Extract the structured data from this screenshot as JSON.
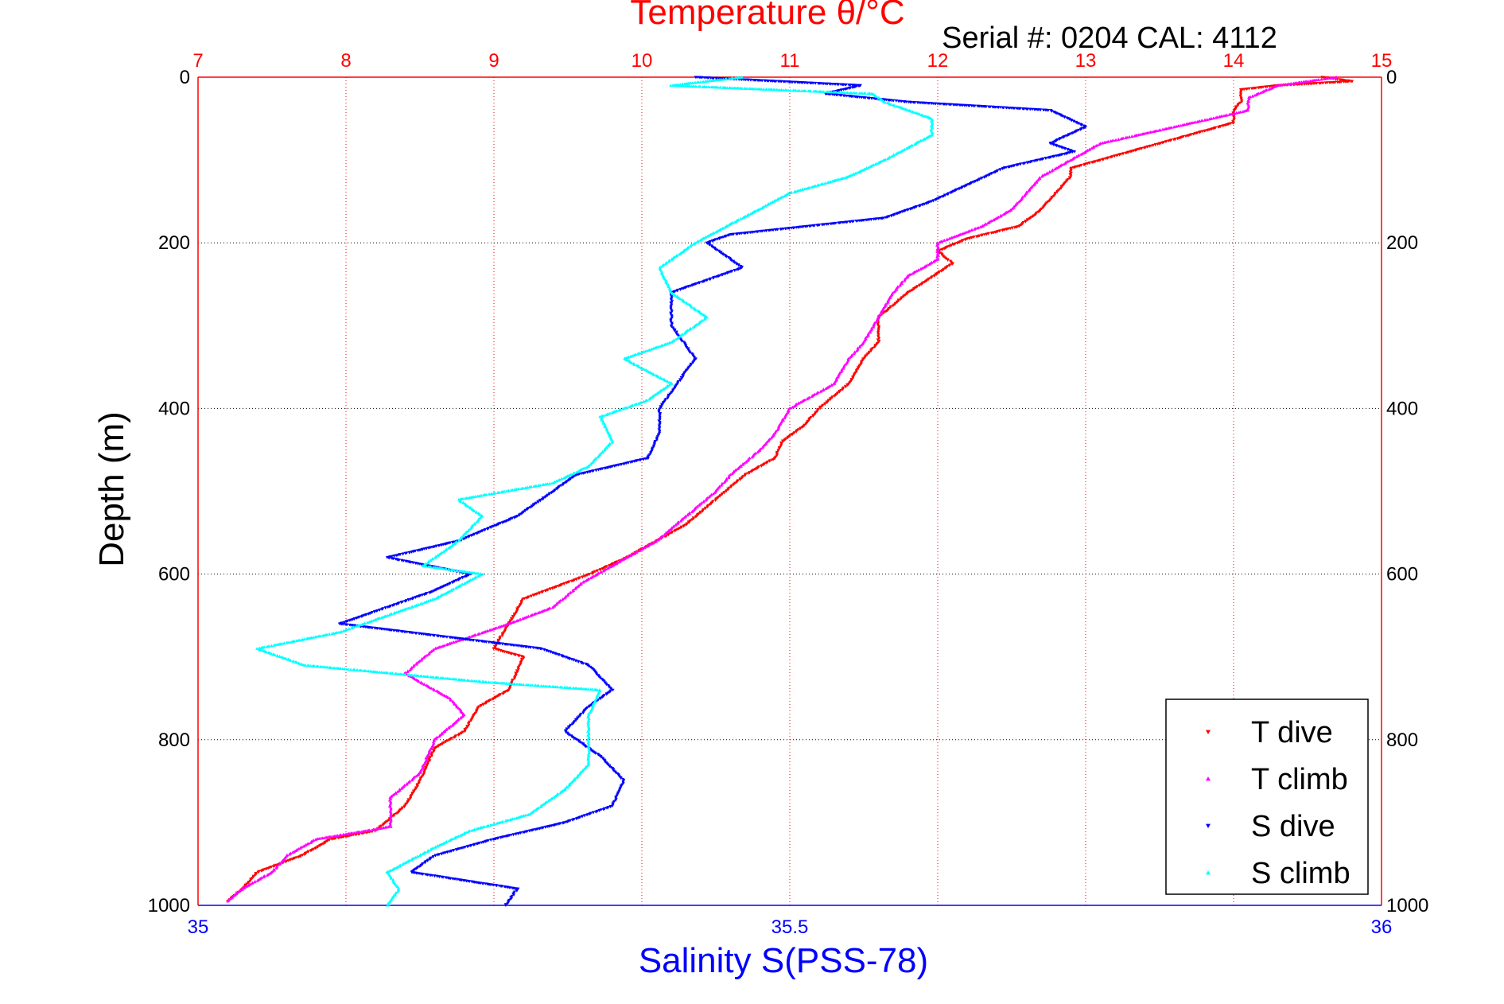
{
  "chart_data": {
    "type": "scatter",
    "title": "Temperature θ/°C",
    "subtitle": "Serial #: 0204  CAL: 4112",
    "ylabel": "Depth (m)",
    "xlabel_bottom": "Salinity S(PSS-78)",
    "y": {
      "range": [
        0,
        1000
      ],
      "reversed": true,
      "ticks": [
        0,
        200,
        400,
        600,
        800,
        1000
      ]
    },
    "x_top": {
      "label": "Temperature θ/°C",
      "range": [
        7,
        15
      ],
      "ticks": [
        7,
        8,
        9,
        10,
        11,
        12,
        13,
        14,
        15
      ],
      "grid": true,
      "color": "#ff0000"
    },
    "x_bottom": {
      "label": "Salinity S(PSS-78)",
      "range": [
        35,
        36
      ],
      "ticks": [
        35,
        35.5,
        36
      ],
      "color": "#0000ff"
    },
    "grid": true,
    "legend": {
      "position": "bottom-right"
    },
    "series": [
      {
        "name": "T dive",
        "axis": "top",
        "color": "#ff0000",
        "marker": "triangle-down",
        "points": [
          [
            14.6,
            0
          ],
          [
            14.8,
            5
          ],
          [
            14.3,
            10
          ],
          [
            14.05,
            15
          ],
          [
            14.05,
            30
          ],
          [
            14.0,
            40
          ],
          [
            14.0,
            55
          ],
          [
            13.6,
            75
          ],
          [
            13.3,
            90
          ],
          [
            12.9,
            110
          ],
          [
            12.9,
            120
          ],
          [
            12.8,
            140
          ],
          [
            12.7,
            160
          ],
          [
            12.55,
            180
          ],
          [
            12.2,
            195
          ],
          [
            12.0,
            210
          ],
          [
            12.1,
            225
          ],
          [
            11.8,
            260
          ],
          [
            11.6,
            290
          ],
          [
            11.6,
            320
          ],
          [
            11.5,
            340
          ],
          [
            11.4,
            370
          ],
          [
            11.2,
            400
          ],
          [
            11.1,
            420
          ],
          [
            10.95,
            440
          ],
          [
            10.9,
            460
          ],
          [
            10.7,
            480
          ],
          [
            10.5,
            510
          ],
          [
            10.3,
            540
          ],
          [
            10.1,
            560
          ],
          [
            9.9,
            580
          ],
          [
            9.65,
            600
          ],
          [
            9.2,
            630
          ],
          [
            9.1,
            660
          ],
          [
            9.0,
            690
          ],
          [
            9.2,
            700
          ],
          [
            9.1,
            740
          ],
          [
            8.9,
            760
          ],
          [
            8.8,
            790
          ],
          [
            8.6,
            810
          ],
          [
            8.5,
            850
          ],
          [
            8.4,
            880
          ],
          [
            8.2,
            910
          ],
          [
            7.9,
            920
          ],
          [
            7.7,
            940
          ],
          [
            7.4,
            960
          ],
          [
            7.3,
            980
          ],
          [
            7.2,
            995
          ]
        ]
      },
      {
        "name": "T climb",
        "axis": "top",
        "color": "#ff00ff",
        "marker": "triangle-up",
        "points": [
          [
            14.7,
            0
          ],
          [
            14.3,
            10
          ],
          [
            14.1,
            25
          ],
          [
            14.1,
            40
          ],
          [
            13.6,
            60
          ],
          [
            13.1,
            80
          ],
          [
            12.9,
            100
          ],
          [
            12.7,
            120
          ],
          [
            12.6,
            140
          ],
          [
            12.5,
            160
          ],
          [
            12.3,
            180
          ],
          [
            12.0,
            200
          ],
          [
            12.0,
            220
          ],
          [
            11.8,
            240
          ],
          [
            11.7,
            260
          ],
          [
            11.6,
            290
          ],
          [
            11.5,
            320
          ],
          [
            11.4,
            340
          ],
          [
            11.3,
            370
          ],
          [
            11.0,
            400
          ],
          [
            10.9,
            430
          ],
          [
            10.8,
            450
          ],
          [
            10.6,
            480
          ],
          [
            10.5,
            500
          ],
          [
            10.3,
            530
          ],
          [
            10.1,
            560
          ],
          [
            9.9,
            580
          ],
          [
            9.6,
            610
          ],
          [
            9.4,
            640
          ],
          [
            9.1,
            660
          ],
          [
            8.6,
            690
          ],
          [
            8.4,
            720
          ],
          [
            8.7,
            750
          ],
          [
            8.8,
            770
          ],
          [
            8.6,
            800
          ],
          [
            8.5,
            840
          ],
          [
            8.3,
            870
          ],
          [
            8.3,
            905
          ],
          [
            7.8,
            920
          ],
          [
            7.6,
            940
          ],
          [
            7.5,
            960
          ],
          [
            7.3,
            980
          ],
          [
            7.2,
            995
          ]
        ]
      },
      {
        "name": "S dive",
        "axis": "bottom",
        "color": "#0000ff",
        "marker": "triangle-down",
        "points": [
          [
            35.42,
            0
          ],
          [
            35.56,
            10
          ],
          [
            35.53,
            20
          ],
          [
            35.6,
            30
          ],
          [
            35.72,
            40
          ],
          [
            35.75,
            60
          ],
          [
            35.72,
            80
          ],
          [
            35.74,
            90
          ],
          [
            35.68,
            110
          ],
          [
            35.65,
            130
          ],
          [
            35.62,
            150
          ],
          [
            35.58,
            170
          ],
          [
            35.45,
            190
          ],
          [
            35.43,
            200
          ],
          [
            35.46,
            230
          ],
          [
            35.4,
            260
          ],
          [
            35.4,
            280
          ],
          [
            35.4,
            300
          ],
          [
            35.42,
            340
          ],
          [
            35.41,
            360
          ],
          [
            35.39,
            400
          ],
          [
            35.39,
            430
          ],
          [
            35.38,
            460
          ],
          [
            35.32,
            480
          ],
          [
            35.3,
            500
          ],
          [
            35.27,
            530
          ],
          [
            35.22,
            560
          ],
          [
            35.16,
            580
          ],
          [
            35.23,
            600
          ],
          [
            35.2,
            620
          ],
          [
            35.16,
            640
          ],
          [
            35.12,
            660
          ],
          [
            35.29,
            690
          ],
          [
            35.33,
            710
          ],
          [
            35.35,
            740
          ],
          [
            35.33,
            760
          ],
          [
            35.31,
            790
          ],
          [
            35.34,
            820
          ],
          [
            35.36,
            850
          ],
          [
            35.35,
            880
          ],
          [
            35.31,
            900
          ],
          [
            35.25,
            920
          ],
          [
            35.2,
            940
          ],
          [
            35.18,
            960
          ],
          [
            35.27,
            980
          ],
          [
            35.26,
            1000
          ]
        ]
      },
      {
        "name": "S climb",
        "axis": "bottom",
        "color": "#00ffff",
        "marker": "triangle-up",
        "points": [
          [
            35.4,
            10
          ],
          [
            35.46,
            0
          ],
          [
            35.57,
            20
          ],
          [
            35.58,
            30
          ],
          [
            35.62,
            50
          ],
          [
            35.62,
            70
          ],
          [
            35.58,
            100
          ],
          [
            35.55,
            120
          ],
          [
            35.5,
            140
          ],
          [
            35.46,
            170
          ],
          [
            35.42,
            200
          ],
          [
            35.39,
            230
          ],
          [
            35.4,
            260
          ],
          [
            35.43,
            290
          ],
          [
            35.4,
            320
          ],
          [
            35.36,
            340
          ],
          [
            35.4,
            370
          ],
          [
            35.38,
            390
          ],
          [
            35.34,
            410
          ],
          [
            35.35,
            440
          ],
          [
            35.33,
            470
          ],
          [
            35.3,
            490
          ],
          [
            35.22,
            510
          ],
          [
            35.24,
            530
          ],
          [
            35.22,
            560
          ],
          [
            35.19,
            590
          ],
          [
            35.24,
            600
          ],
          [
            35.2,
            630
          ],
          [
            35.16,
            650
          ],
          [
            35.12,
            670
          ],
          [
            35.05,
            690
          ],
          [
            35.09,
            710
          ],
          [
            35.24,
            730
          ],
          [
            35.34,
            740
          ],
          [
            35.33,
            770
          ],
          [
            35.33,
            810
          ],
          [
            35.33,
            830
          ],
          [
            35.31,
            860
          ],
          [
            35.28,
            890
          ],
          [
            35.23,
            910
          ],
          [
            35.2,
            930
          ],
          [
            35.16,
            960
          ],
          [
            35.17,
            980
          ],
          [
            35.16,
            1000
          ]
        ]
      }
    ]
  }
}
